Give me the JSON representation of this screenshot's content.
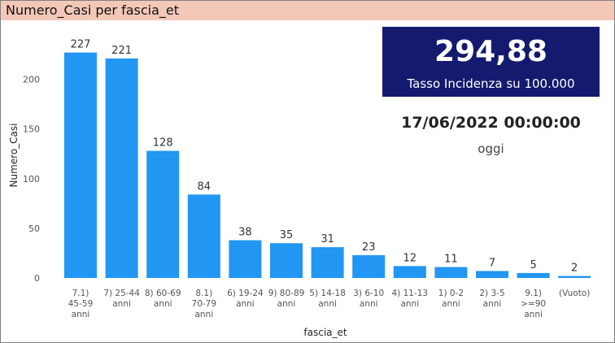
{
  "header": {
    "title": "Numero_Casi per fascia_et"
  },
  "kpi": {
    "value": "294,88",
    "label": "Tasso Incidenza su 100.000"
  },
  "date": {
    "value": "17/06/2022 00:00:00",
    "label": "oggi"
  },
  "colors": {
    "bar": "#2196f3",
    "kpi_bg": "#141a6e",
    "title_bg": "#f4c8b8"
  },
  "chart_data": {
    "type": "bar",
    "xlabel": "fascia_et",
    "ylabel": "Numero_Casi",
    "ylim": [
      0,
      240
    ],
    "yticks": [
      0,
      50,
      100,
      150,
      200
    ],
    "grid": false,
    "categories": [
      "7.1) 45-59 anni",
      "7) 25-44 anni",
      "8) 60-69 anni",
      "8.1) 70-79 anni",
      "6) 19-24 anni",
      "9) 80-89 anni",
      "5) 14-18 anni",
      "3) 6-10 anni",
      "4) 11-13 anni",
      "1) 0-2 anni",
      "2) 3-5 anni",
      "9.1) >=90 anni",
      "(Vuoto)"
    ],
    "category_lines": [
      [
        "7.1)",
        "45-59",
        "anni"
      ],
      [
        "7) 25-44",
        "anni"
      ],
      [
        "8) 60-69",
        "anni"
      ],
      [
        "8.1)",
        "70-79",
        "anni"
      ],
      [
        "6) 19-24",
        "anni"
      ],
      [
        "9) 80-89",
        "anni"
      ],
      [
        "5) 14-18",
        "anni"
      ],
      [
        "3) 6-10",
        "anni"
      ],
      [
        "4) 11-13",
        "anni"
      ],
      [
        "1) 0-2",
        "anni"
      ],
      [
        "2) 3-5",
        "anni"
      ],
      [
        "9.1)",
        ">=90",
        "anni"
      ],
      [
        "(Vuoto)"
      ]
    ],
    "values": [
      227,
      221,
      128,
      84,
      38,
      35,
      31,
      23,
      12,
      11,
      7,
      5,
      2
    ]
  }
}
